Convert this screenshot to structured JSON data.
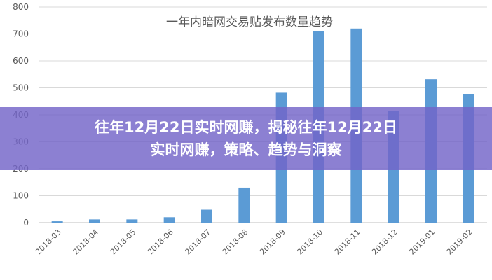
{
  "chart_data": {
    "type": "bar",
    "title": "一年内暗网交易贴发布数量趋势",
    "categories": [
      "2018-03",
      "2018-04",
      "2018-05",
      "2018-06",
      "2018-07",
      "2018-08",
      "2018-09",
      "2018-10",
      "2018-11",
      "2018-12",
      "2019-01",
      "2019-02"
    ],
    "values": [
      5,
      12,
      12,
      20,
      48,
      130,
      482,
      710,
      720,
      413,
      532,
      477
    ],
    "ylim": [
      0,
      800
    ],
    "yticks": [
      0,
      100,
      200,
      300,
      400,
      500,
      600,
      700,
      800
    ],
    "grid": true,
    "bar_color": "#5b9bd5",
    "xlabel": "",
    "ylabel": ""
  },
  "overlay": {
    "line1": "往年12月22日实时网赚，揭秘往年12月22日",
    "line2": "实时网赚，策略、趋势与洞察",
    "color": "#7364c8"
  }
}
